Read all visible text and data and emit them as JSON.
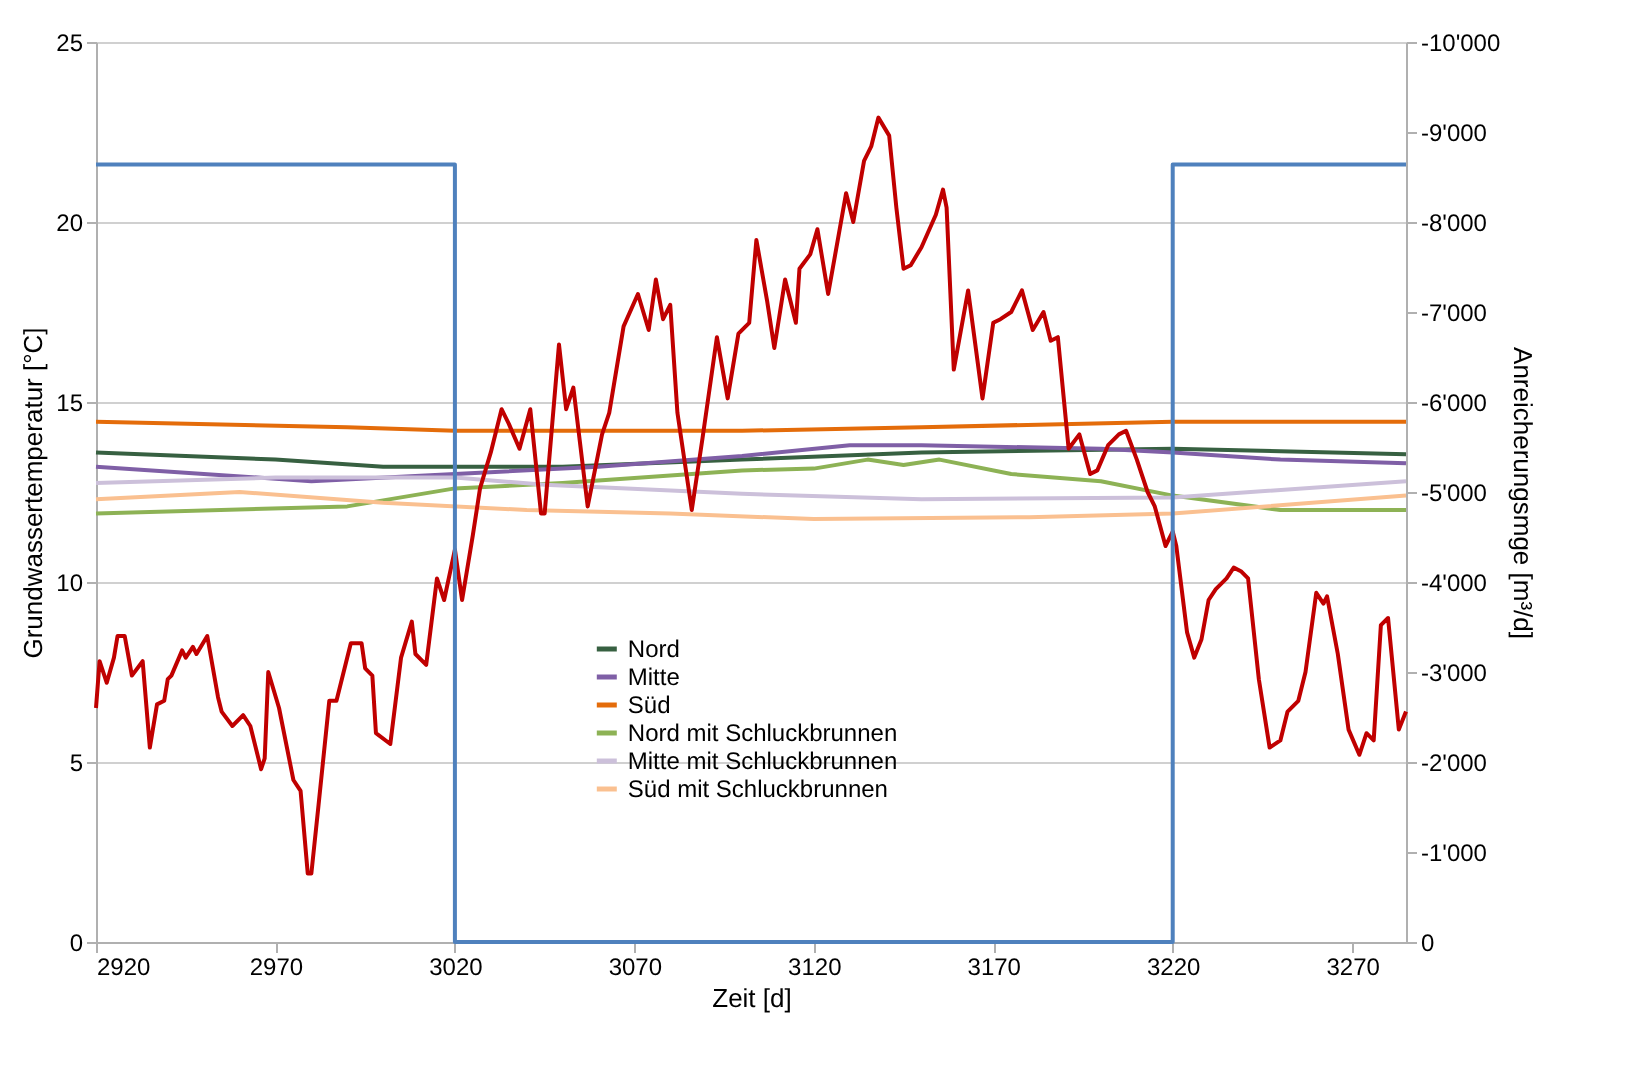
{
  "chart_data": {
    "type": "line",
    "xlabel": "Zeit [d]",
    "ylabel": "Grundwassertemperatur [°C]",
    "y2label": "Anreicherungsmge [m³/d]",
    "xlim": [
      2920,
      3285
    ],
    "xticks": [
      2920,
      2970,
      3020,
      3070,
      3120,
      3170,
      3220,
      3270
    ],
    "ylim": [
      0,
      25
    ],
    "yticks": [
      0,
      5,
      10,
      15,
      20,
      25
    ],
    "y2lim": [
      0,
      -10000
    ],
    "y2ticks": [
      0,
      {
        "value": -1000,
        "label": "-1'000"
      },
      {
        "value": -2000,
        "label": "-2'000"
      },
      {
        "value": -3000,
        "label": "-3'000"
      },
      {
        "value": -4000,
        "label": "-4'000"
      },
      {
        "value": -5000,
        "label": "-5'000"
      },
      {
        "value": -6000,
        "label": "-6'000"
      },
      {
        "value": -7000,
        "label": "-7'000"
      },
      {
        "value": -8000,
        "label": "-8'000"
      },
      {
        "value": -9000,
        "label": "-9'000"
      },
      {
        "value": -10000,
        "label": "-10'000"
      }
    ],
    "grid": "y",
    "legend": "bottom",
    "series": [
      {
        "name": "Nord",
        "color": "#376041",
        "x": [
          2920,
          2970,
          3000,
          3050,
          3100,
          3150,
          3220,
          3285
        ],
        "values": [
          13.6,
          13.4,
          13.2,
          13.2,
          13.4,
          13.6,
          13.7,
          13.55
        ]
      },
      {
        "name": "Mitte",
        "color": "#7f5fa6",
        "x": [
          2920,
          2980,
          3020,
          3060,
          3100,
          3130,
          3150,
          3200,
          3220,
          3250,
          3285
        ],
        "values": [
          13.2,
          12.8,
          13.0,
          13.2,
          13.5,
          13.8,
          13.8,
          13.7,
          13.6,
          13.4,
          13.3
        ]
      },
      {
        "name": "Süd",
        "color": "#e46c0a",
        "x": [
          2920,
          2990,
          3020,
          3100,
          3150,
          3220,
          3285
        ],
        "values": [
          14.45,
          14.3,
          14.2,
          14.2,
          14.3,
          14.45,
          14.45
        ]
      },
      {
        "name": "Nord mit Schluckbrunnen",
        "color": "#8db255",
        "x": [
          2920,
          2990,
          3020,
          3050,
          3100,
          3120,
          3135,
          3145,
          3155,
          3175,
          3200,
          3220,
          3250,
          3285
        ],
        "values": [
          11.9,
          12.1,
          12.6,
          12.75,
          13.1,
          13.15,
          13.4,
          13.25,
          13.4,
          13.0,
          12.8,
          12.4,
          12.0,
          12.0
        ]
      },
      {
        "name": "Mitte mit Schluckbrunnen",
        "color": "#ccc0da",
        "x": [
          2920,
          2970,
          3020,
          3045,
          3100,
          3150,
          3220,
          3285
        ],
        "values": [
          12.75,
          12.9,
          12.9,
          12.7,
          12.45,
          12.3,
          12.35,
          12.8
        ]
      },
      {
        "name": "Süd mit Schluckbrunnen",
        "color": "#fac090",
        "x": [
          2920,
          2960,
          3000,
          3040,
          3080,
          3120,
          3180,
          3220,
          3285
        ],
        "values": [
          12.3,
          12.5,
          12.2,
          12.0,
          11.9,
          11.75,
          11.8,
          11.9,
          12.4
        ]
      },
      {
        "color": "#c00000",
        "x": [
          2920,
          2921,
          2923,
          2925,
          2926,
          2928,
          2930,
          2933,
          2935,
          2937,
          2939,
          2940,
          2941,
          2944,
          2945,
          2947,
          2948,
          2951,
          2954,
          2955,
          2958,
          2961,
          2963,
          2966,
          2967,
          2968,
          2971,
          2975,
          2977,
          2979,
          2980,
          2982,
          2985,
          2987,
          2991,
          2994,
          2995,
          2997,
          2998,
          3002,
          3005,
          3008,
          3009,
          3012,
          3015,
          3017,
          3020,
          3022,
          3025,
          3027,
          3030,
          3033,
          3035,
          3038,
          3041,
          3044,
          3045,
          3049,
          3051,
          3053,
          3057,
          3061,
          3063,
          3067,
          3071,
          3074,
          3076,
          3078,
          3080,
          3082,
          3086,
          3089,
          3093,
          3096,
          3099,
          3102,
          3104,
          3107,
          3109,
          3112,
          3115,
          3116,
          3119,
          3121,
          3124,
          3129,
          3131,
          3134,
          3136,
          3138,
          3141,
          3143,
          3145,
          3147,
          3150,
          3154,
          3156,
          3157,
          3159,
          3163,
          3167,
          3170,
          3172,
          3175,
          3178,
          3181,
          3184,
          3186,
          3188,
          3191,
          3194,
          3197,
          3199,
          3202,
          3205,
          3207,
          3210,
          3213,
          3215,
          3218,
          3220,
          3221,
          3224,
          3226,
          3228,
          3230,
          3232,
          3235,
          3237,
          3239,
          3241,
          3244,
          3247,
          3250,
          3252,
          3255,
          3257,
          3260,
          3262,
          3263,
          3266,
          3269,
          3272,
          3274,
          3276,
          3278,
          3280,
          3283,
          3285
        ],
        "values": [
          6.5,
          7.8,
          7.2,
          7.9,
          8.5,
          8.5,
          7.4,
          7.8,
          5.4,
          6.6,
          6.7,
          7.3,
          7.4,
          8.1,
          7.9,
          8.2,
          8.0,
          8.5,
          6.8,
          6.4,
          6.0,
          6.3,
          6.0,
          4.8,
          5.1,
          7.5,
          6.5,
          4.5,
          4.2,
          1.9,
          1.9,
          3.8,
          6.7,
          6.7,
          8.3,
          8.3,
          7.6,
          7.4,
          5.8,
          5.5,
          7.9,
          8.9,
          8.0,
          7.7,
          10.1,
          9.5,
          10.9,
          9.5,
          11.3,
          12.6,
          13.6,
          14.8,
          14.4,
          13.7,
          14.8,
          11.9,
          11.9,
          16.6,
          14.8,
          15.4,
          12.1,
          14.1,
          14.7,
          17.1,
          18.0,
          17.0,
          18.4,
          17.3,
          17.7,
          14.7,
          12.0,
          14.0,
          16.8,
          15.1,
          16.9,
          17.2,
          19.5,
          17.8,
          16.5,
          18.4,
          17.2,
          18.7,
          19.1,
          19.8,
          18.0,
          20.8,
          20.0,
          21.7,
          22.1,
          22.9,
          22.4,
          20.4,
          18.7,
          18.8,
          19.3,
          20.2,
          20.9,
          20.4,
          15.9,
          18.1,
          15.1,
          17.2,
          17.3,
          17.5,
          18.1,
          17.0,
          17.5,
          16.7,
          16.8,
          13.7,
          14.1,
          13.0,
          13.1,
          13.8,
          14.1,
          14.2,
          13.4,
          12.5,
          12.1,
          11.0,
          11.4,
          11.0,
          8.6,
          7.9,
          8.4,
          9.5,
          9.8,
          10.1,
          10.4,
          10.3,
          10.1,
          7.3,
          5.4,
          5.6,
          6.4,
          6.7,
          7.5,
          9.7,
          9.4,
          9.6,
          8.0,
          5.9,
          5.2,
          5.8,
          5.6,
          8.8,
          9.0,
          5.9,
          6.4
        ]
      },
      {
        "color": "#4f81bd",
        "axis": "y2",
        "x": [
          2920,
          3020,
          3020,
          3220,
          3220,
          3285
        ],
        "values": [
          -8640,
          -8640,
          0,
          0,
          -8640,
          -8640
        ]
      }
    ]
  }
}
